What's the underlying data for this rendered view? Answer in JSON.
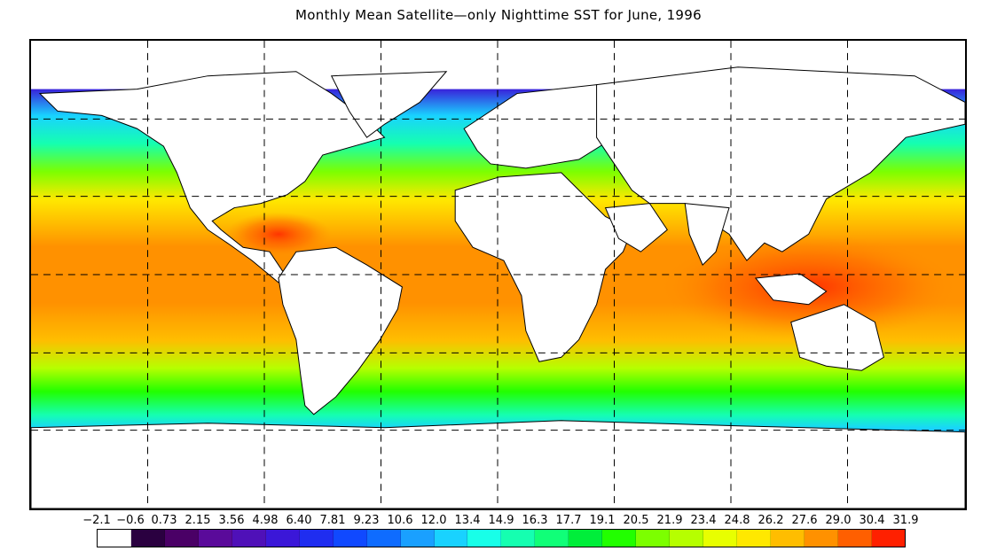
{
  "title": "Monthly Mean Satellite—only Nighttime SST for June, 1996",
  "map": {
    "type": "sea surface temperature map",
    "projection": "equirectangular world map",
    "gridlines": "dashed",
    "land_color": "#ffffff",
    "coastline_color": "#000000",
    "polar_ice_color": "#5a0a9a"
  },
  "legend": {
    "tick_labels": [
      "−2.1",
      "−0.6",
      "0.73",
      "2.15",
      "3.56",
      "4.98",
      "6.40",
      "7.81",
      "9.23",
      "10.6",
      "12.0",
      "13.4",
      "14.9",
      "16.3",
      "17.7",
      "19.1",
      "20.5",
      "21.9",
      "23.4",
      "24.8",
      "26.2",
      "27.6",
      "29.0",
      "30.4",
      "31.9"
    ],
    "colors": [
      "#ffffff",
      "#2a0040",
      "#4a0066",
      "#5a0a9a",
      "#4f10b8",
      "#3b17d8",
      "#1f2df0",
      "#1049ff",
      "#0f6cff",
      "#1aa0ff",
      "#19d2ff",
      "#18ffe8",
      "#15ffb0",
      "#10ff78",
      "#00ee3a",
      "#22ff00",
      "#7cff00",
      "#b6ff00",
      "#e8ff00",
      "#ffe800",
      "#ffbd00",
      "#ff9100",
      "#ff5f00",
      "#ff2000"
    ]
  }
}
